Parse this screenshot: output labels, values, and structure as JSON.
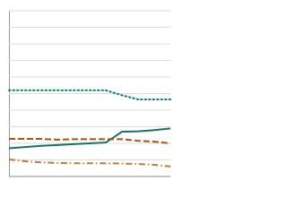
{
  "chart_data": {
    "type": "line",
    "categories": [
      null,
      null,
      null,
      null,
      null,
      null,
      null,
      null,
      null,
      null,
      null
    ],
    "series": [
      {
        "color": "#1a7a74",
        "dash": "dotted",
        "values": [
          5.2,
          5.2,
          5.2,
          5.2,
          5.2,
          5.2,
          5.2,
          4.9,
          4.65,
          4.65,
          4.65
        ]
      },
      {
        "color": "#1a6e6a",
        "dash": "solid",
        "values": [
          1.7,
          1.78,
          1.85,
          1.9,
          1.95,
          2.0,
          2.05,
          2.7,
          2.72,
          2.8,
          2.9
        ]
      },
      {
        "color": "#a0581a",
        "dash": "dashed",
        "values": [
          2.27,
          2.27,
          2.27,
          2.22,
          2.25,
          2.25,
          2.25,
          2.25,
          2.15,
          2.1,
          2.0
        ]
      },
      {
        "color": "#c07a3a",
        "dash": "dashdot",
        "values": [
          1.03,
          0.92,
          0.85,
          0.82,
          0.8,
          0.8,
          0.8,
          0.78,
          0.75,
          0.7,
          0.6
        ]
      }
    ],
    "ylim": [
      0,
      10
    ],
    "yticks": [
      0,
      1,
      2,
      3,
      4,
      5,
      6,
      7,
      8,
      9,
      10
    ],
    "grid": true
  }
}
